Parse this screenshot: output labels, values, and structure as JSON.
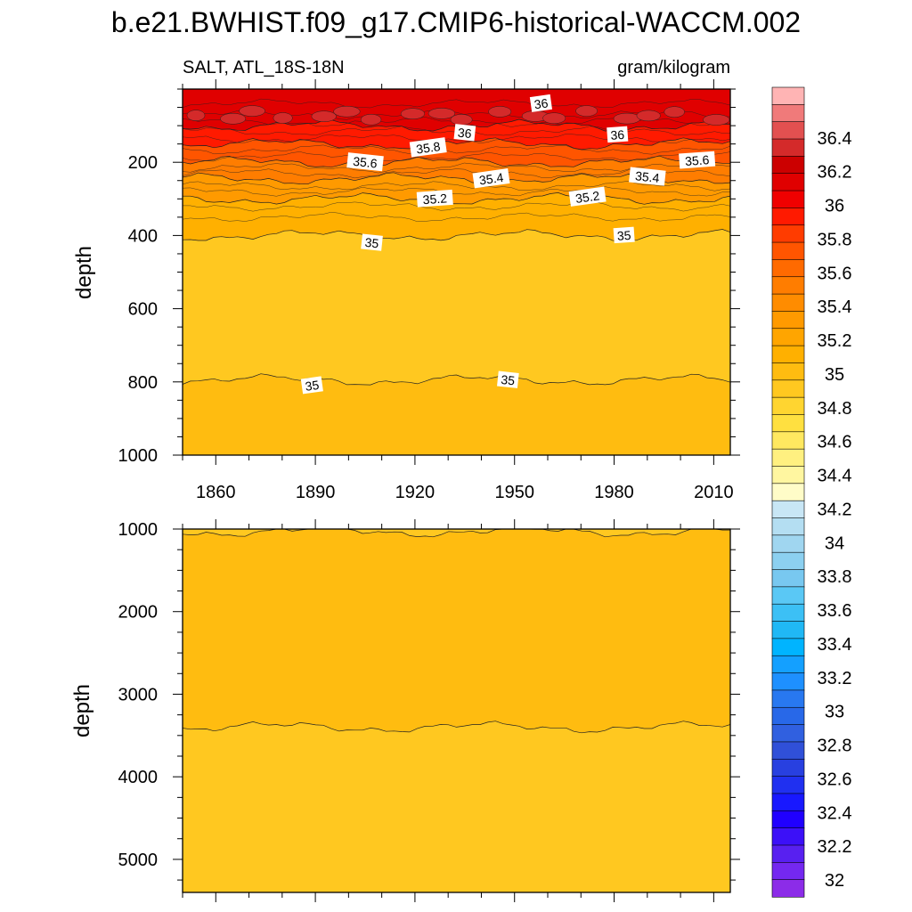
{
  "chart_data": {
    "type": "filled-contour",
    "title": "b.e21.BWHIST.f09_g17.CMIP6-historical-WACCM.002",
    "variable_label": "SALT, ATL_18S-18N",
    "units_label": "gram/kilogram",
    "panels": [
      {
        "name": "upper",
        "ylabel": "depth",
        "x_range": [
          1850,
          2015
        ],
        "y_range": [
          0,
          1000
        ],
        "x_ticks": [
          "1860",
          "1890",
          "1920",
          "1950",
          "1980",
          "2010"
        ],
        "y_ticks": [
          "200",
          "400",
          "600",
          "800",
          "1000"
        ],
        "bands": [
          {
            "from": 0,
            "to": 100,
            "value": 36.1
          },
          {
            "from": 100,
            "to": 150,
            "value": 35.9
          },
          {
            "from": 150,
            "to": 200,
            "value": 35.7
          },
          {
            "from": 200,
            "to": 245,
            "value": 35.5
          },
          {
            "from": 245,
            "to": 300,
            "value": 35.3
          },
          {
            "from": 300,
            "to": 400,
            "value": 35.1
          },
          {
            "from": 400,
            "to": 795,
            "value": 34.95
          },
          {
            "from": 795,
            "to": 1000,
            "value": 35.05
          }
        ],
        "contour_labels": [
          {
            "text": "36",
            "year": 1958,
            "depth": 40
          },
          {
            "text": "36",
            "year": 1935,
            "depth": 120
          },
          {
            "text": "36",
            "year": 1981,
            "depth": 125
          },
          {
            "text": "35.8",
            "year": 1924,
            "depth": 160
          },
          {
            "text": "35.6",
            "year": 1905,
            "depth": 200
          },
          {
            "text": "35.6",
            "year": 2005,
            "depth": 195
          },
          {
            "text": "35.4",
            "year": 1943,
            "depth": 245
          },
          {
            "text": "35.4",
            "year": 1990,
            "depth": 240
          },
          {
            "text": "35.2",
            "year": 1926,
            "depth": 300
          },
          {
            "text": "35.2",
            "year": 1972,
            "depth": 295
          },
          {
            "text": "35",
            "year": 1907,
            "depth": 420
          },
          {
            "text": "35",
            "year": 1983,
            "depth": 400
          },
          {
            "text": "35",
            "year": 1889,
            "depth": 810
          },
          {
            "text": "35",
            "year": 1948,
            "depth": 795
          }
        ]
      },
      {
        "name": "lower",
        "ylabel": "depth",
        "x_range": [
          1850,
          2015
        ],
        "y_range": [
          1000,
          5400
        ],
        "x_ticks": [],
        "y_ticks": [
          "1000",
          "2000",
          "3000",
          "4000",
          "5000"
        ],
        "bands": [
          {
            "from": 1000,
            "to": 1030,
            "value": 34.95
          },
          {
            "from": 1030,
            "to": 3400,
            "value": 35.05
          },
          {
            "from": 3400,
            "to": 5400,
            "value": 34.95
          }
        ],
        "contour_labels": []
      }
    ],
    "colorbar": {
      "levels": [
        "36.4",
        "36.2",
        "36",
        "35.8",
        "35.6",
        "35.4",
        "35.2",
        "35",
        "34.8",
        "34.6",
        "34.4",
        "34.2",
        "34",
        "33.8",
        "33.6",
        "33.4",
        "33.2",
        "33",
        "32.8",
        "32.6",
        "32.4",
        "32.2",
        "32"
      ],
      "colors": [
        "#ffb4b4",
        "#f07a7a",
        "#e25050",
        "#d42a2a",
        "#cc0000",
        "#e00000",
        "#f00000",
        "#ff1a00",
        "#ff3c00",
        "#ff5500",
        "#ff6a00",
        "#ff7d00",
        "#ff8c00",
        "#ff9a00",
        "#ffa500",
        "#ffb000",
        "#ffbc10",
        "#ffc820",
        "#ffd530",
        "#ffe040",
        "#ffe860",
        "#fff080",
        "#fff6a0",
        "#fffcc8",
        "#c8e6f5",
        "#b4def2",
        "#a0d6f0",
        "#8cd0f0",
        "#78c8f0",
        "#5ac8f5",
        "#3cc0f5",
        "#20b8f5",
        "#00b4ff",
        "#14a0ff",
        "#1e90ff",
        "#2878f0",
        "#2868e8",
        "#3060e0",
        "#3050d8",
        "#2840e0",
        "#2030f0",
        "#1818ff",
        "#2000ff",
        "#3c10f8",
        "#5820f0",
        "#7428f0",
        "#8c2ce8"
      ]
    }
  }
}
